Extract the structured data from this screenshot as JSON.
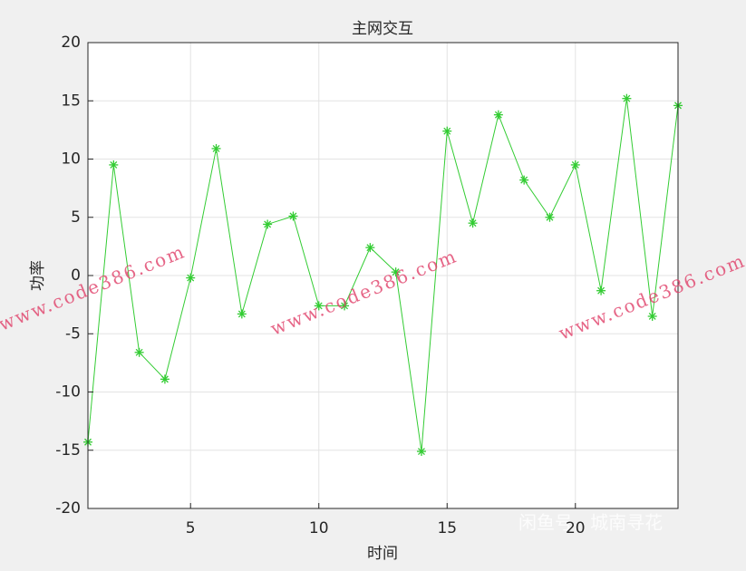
{
  "chart_data": {
    "type": "line",
    "title": "主网交互",
    "xlabel": "时间",
    "ylabel": "功率",
    "x": [
      1,
      2,
      3,
      4,
      5,
      6,
      7,
      8,
      9,
      10,
      11,
      12,
      13,
      14,
      15,
      16,
      17,
      18,
      19,
      20,
      21,
      22,
      23,
      24
    ],
    "series": [
      {
        "name": "功率",
        "color": "#33cc33",
        "values": [
          -14.3,
          9.5,
          -6.6,
          -8.9,
          -0.2,
          10.9,
          -3.3,
          4.4,
          5.1,
          -2.6,
          -2.6,
          2.4,
          0.3,
          -15.1,
          12.4,
          4.5,
          13.8,
          8.2,
          5.0,
          9.5,
          -1.3,
          15.2,
          -3.5,
          14.6
        ]
      }
    ],
    "xlim": [
      1,
      24
    ],
    "xticks": [
      5,
      10,
      15,
      20
    ],
    "ylim": [
      -20,
      20
    ],
    "yticks": [
      -20,
      -15,
      -10,
      -5,
      0,
      5,
      10,
      15,
      20
    ],
    "grid": true,
    "marker": "asterisk",
    "watermark": "www.code386.com",
    "watermark2": "闲鱼号 · 城南寻花"
  }
}
